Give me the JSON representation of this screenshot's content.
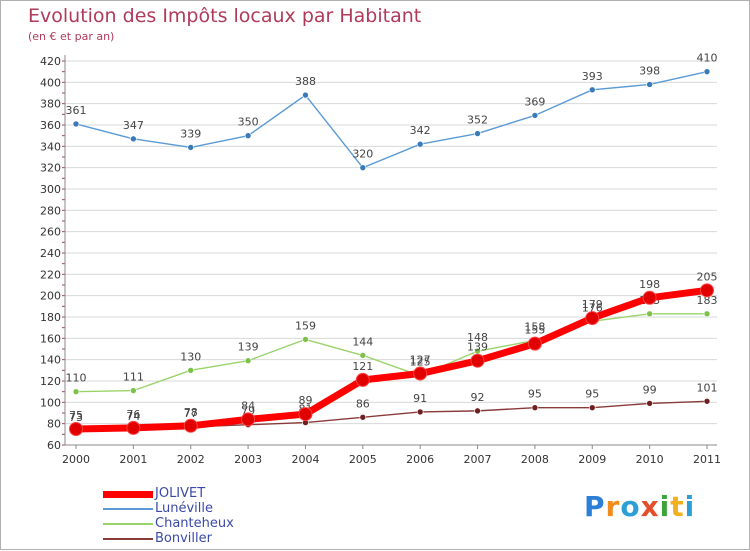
{
  "header": {
    "title": "Evolution des Impôts locaux par Habitant",
    "subtitle": "(en € et par an)"
  },
  "logo": {
    "letters": [
      "P",
      "r",
      "o",
      "x",
      "i",
      "t",
      "i"
    ],
    "colors": [
      "#2b7fd6",
      "#f28c1e",
      "#2b9fd6",
      "#e34f2a",
      "#3aa63a",
      "#f2b01e",
      "#2b9fd6"
    ]
  },
  "chart_data": {
    "type": "line",
    "title": "Evolution des Impôts locaux par Habitant",
    "subtitle": "(en € et par an)",
    "x": [
      "2000",
      "2001",
      "2002",
      "2003",
      "2004",
      "2005",
      "2006",
      "2007",
      "2008",
      "2009",
      "2010",
      "2011"
    ],
    "ylim": [
      60,
      420
    ],
    "yticks": [
      60,
      80,
      100,
      120,
      140,
      160,
      180,
      200,
      220,
      240,
      260,
      280,
      300,
      320,
      340,
      360,
      380,
      400,
      420
    ],
    "grid": true,
    "legend_position": "bottom-left",
    "series": [
      {
        "name": "Lunéville",
        "color": "#5b9bd5",
        "marker_color": "#3a7ab8",
        "values": [
          361,
          347,
          339,
          350,
          388,
          320,
          342,
          352,
          369,
          393,
          398,
          410
        ]
      },
      {
        "name": "Chanteheux",
        "color": "#9bd36b",
        "marker_color": "#7cc24a",
        "values": [
          110,
          111,
          130,
          139,
          159,
          144,
          125,
          148,
          158,
          176,
          183,
          183
        ]
      },
      {
        "name": "Bonviller",
        "color": "#8b3a3a",
        "marker_color": "#6e2020",
        "values": [
          73,
          74,
          77,
          79,
          81,
          86,
          91,
          92,
          95,
          95,
          99,
          101
        ]
      },
      {
        "name": "JOLIVET",
        "color": "#ff0000",
        "marker_color": "#e00000",
        "values": [
          75,
          76,
          78,
          84,
          89,
          121,
          127,
          139,
          155,
          179,
          198,
          205
        ]
      }
    ]
  }
}
